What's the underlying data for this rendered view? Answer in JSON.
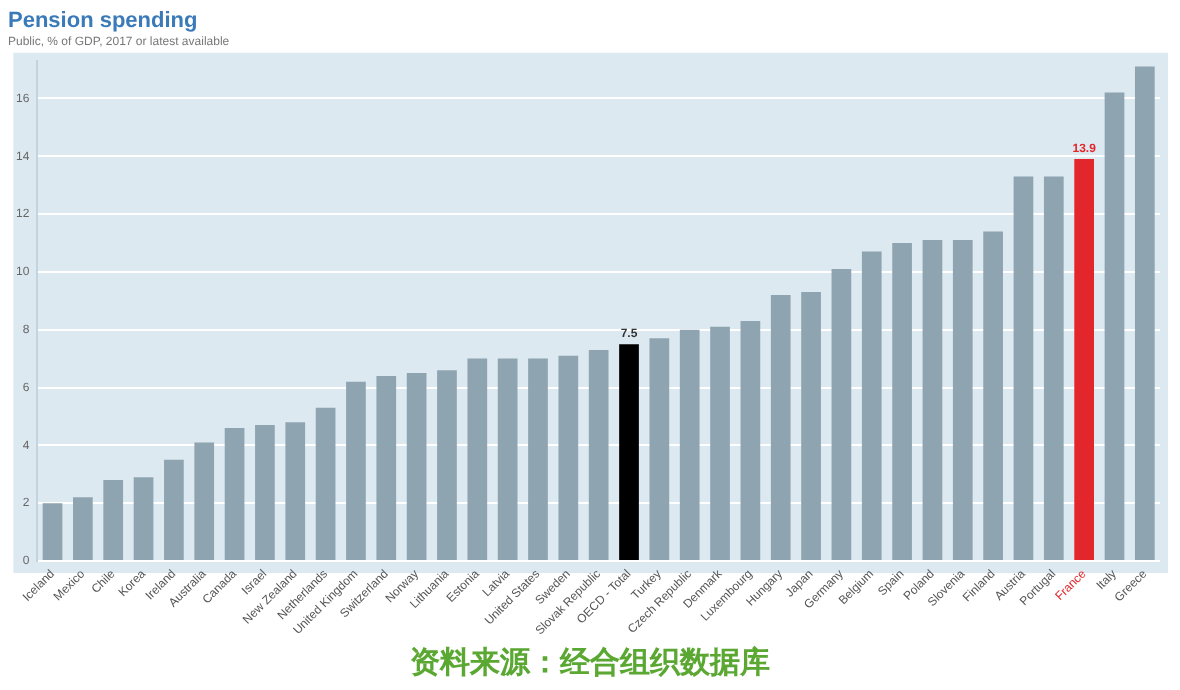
{
  "chart_data": {
    "type": "bar",
    "title": "Pension spending",
    "subtitle": "Public, % of GDP, 2017 or latest available",
    "categories": [
      "Iceland",
      "Mexico",
      "Chile",
      "Korea",
      "Ireland",
      "Australia",
      "Canada",
      "Israel",
      "New Zealand",
      "Netherlands",
      "United Kingdom",
      "Switzerland",
      "Norway",
      "Lithuania",
      "Estonia",
      "Latvia",
      "United States",
      "Sweden",
      "Slovak Republic",
      "OECD - Total",
      "Turkey",
      "Czech Republic",
      "Denmark",
      "Luxembourg",
      "Hungary",
      "Japan",
      "Germany",
      "Belgium",
      "Spain",
      "Poland",
      "Slovenia",
      "Finland",
      "Austria",
      "Portugal",
      "France",
      "Italy",
      "Greece"
    ],
    "values": [
      2.0,
      2.2,
      2.8,
      2.9,
      3.5,
      4.1,
      4.6,
      4.7,
      4.8,
      5.3,
      6.2,
      6.4,
      6.5,
      6.6,
      7.0,
      7.0,
      7.0,
      7.1,
      7.3,
      7.5,
      7.7,
      8.0,
      8.1,
      8.3,
      9.2,
      9.3,
      10.1,
      10.7,
      11.0,
      11.1,
      11.1,
      11.4,
      13.3,
      13.3,
      13.9,
      16.2,
      17.1
    ],
    "colors": [
      "#8fa4b1",
      "#8fa4b1",
      "#8fa4b1",
      "#8fa4b1",
      "#8fa4b1",
      "#8fa4b1",
      "#8fa4b1",
      "#8fa4b1",
      "#8fa4b1",
      "#8fa4b1",
      "#8fa4b1",
      "#8fa4b1",
      "#8fa4b1",
      "#8fa4b1",
      "#8fa4b1",
      "#8fa4b1",
      "#8fa4b1",
      "#8fa4b1",
      "#8fa4b1",
      "#000000",
      "#8fa4b1",
      "#8fa4b1",
      "#8fa4b1",
      "#8fa4b1",
      "#8fa4b1",
      "#8fa4b1",
      "#8fa4b1",
      "#8fa4b1",
      "#8fa4b1",
      "#8fa4b1",
      "#8fa4b1",
      "#8fa4b1",
      "#8fa4b1",
      "#8fa4b1",
      "#e3262b",
      "#8fa4b1",
      "#8fa4b1"
    ],
    "value_labels": [
      null,
      null,
      null,
      null,
      null,
      null,
      null,
      null,
      null,
      null,
      null,
      null,
      null,
      null,
      null,
      null,
      null,
      null,
      null,
      "7.5",
      null,
      null,
      null,
      null,
      null,
      null,
      null,
      null,
      null,
      null,
      null,
      null,
      null,
      null,
      "13.9",
      null,
      null
    ],
    "ylim": [
      0,
      17.3
    ],
    "yticks": [
      0,
      2,
      4,
      6,
      8,
      10,
      12,
      14,
      16
    ],
    "grid": "y",
    "legend": false,
    "annotations": [
      "资料来源：经合组织数据库"
    ]
  }
}
